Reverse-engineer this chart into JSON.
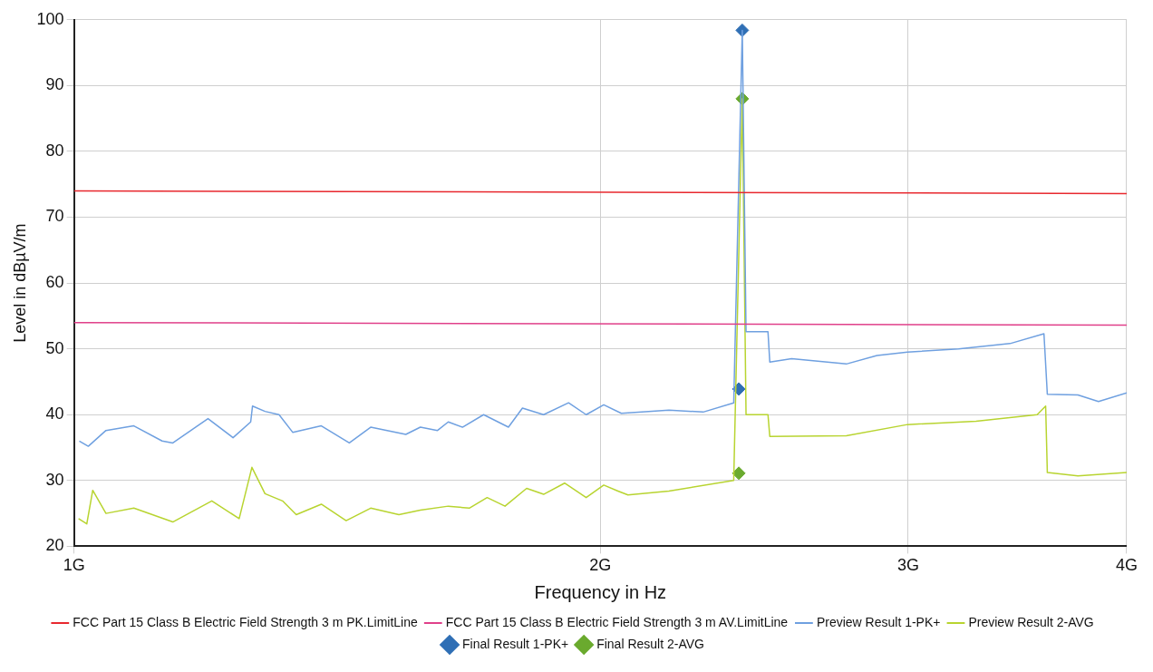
{
  "chart_data": {
    "type": "line",
    "xlabel": "Frequency in Hz",
    "ylabel": "Level in dBµV/m",
    "log": "x",
    "grid": true,
    "legend": "bottom",
    "xlim": [
      1,
      4
    ],
    "xticks": [
      {
        "value": 1,
        "label": "1G"
      },
      {
        "value": 2,
        "label": "2G"
      },
      {
        "value": 3,
        "label": "3G"
      },
      {
        "value": 4,
        "label": "4G"
      }
    ],
    "ylim": [
      20,
      100
    ],
    "yticks": [
      20,
      30,
      40,
      50,
      60,
      70,
      80,
      90,
      100
    ],
    "series": [
      {
        "name": "FCC Part 15 Class B Electric Field Strength 3 m PK.LimitLine",
        "color": "#e8282e",
        "x": [
          1,
          4
        ],
        "values": [
          74,
          73.6
        ]
      },
      {
        "name": "FCC Part 15 Class B Electric Field Strength 3 m AV.LimitLine",
        "color": "#e0408a",
        "x": [
          1,
          4
        ],
        "values": [
          54,
          53.6
        ]
      },
      {
        "name": "Preview Result 1-PK+",
        "color": "#6fa0e0",
        "x": [
          1.007,
          1.019,
          1.043,
          1.082,
          1.123,
          1.139,
          1.193,
          1.233,
          1.262,
          1.265,
          1.286,
          1.31,
          1.334,
          1.385,
          1.437,
          1.478,
          1.548,
          1.578,
          1.614,
          1.637,
          1.668,
          1.715,
          1.772,
          1.805,
          1.856,
          1.918,
          1.963,
          2.009,
          2.056,
          2.189,
          2.29,
          2.384,
          2.411,
          2.423,
          2.494,
          2.5,
          2.573,
          2.765,
          2.879,
          2.997,
          3.205,
          3.43,
          3.587,
          3.603,
          3.751,
          3.854,
          4.0
        ],
        "values": [
          36.0,
          35.2,
          37.6,
          38.3,
          36.0,
          35.7,
          39.4,
          36.5,
          38.9,
          41.3,
          40.5,
          40.0,
          37.3,
          38.3,
          35.7,
          38.1,
          37.0,
          38.1,
          37.6,
          38.9,
          38.1,
          40.0,
          38.1,
          41.0,
          40.0,
          41.8,
          40.0,
          41.5,
          40.2,
          40.7,
          40.4,
          41.8,
          98.4,
          52.6,
          52.6,
          48.0,
          48.5,
          47.7,
          49.0,
          49.5,
          50.0,
          50.8,
          52.3,
          43.1,
          43.0,
          42.0,
          43.3
        ]
      },
      {
        "name": "Preview Result 2-AVG",
        "color": "#b8d430",
        "x": [
          1.006,
          1.017,
          1.025,
          1.043,
          1.082,
          1.139,
          1.199,
          1.243,
          1.264,
          1.286,
          1.316,
          1.34,
          1.385,
          1.431,
          1.478,
          1.534,
          1.578,
          1.637,
          1.683,
          1.723,
          1.764,
          1.815,
          1.856,
          1.908,
          1.963,
          2.009,
          2.047,
          2.074,
          2.189,
          2.384,
          2.411,
          2.423,
          2.494,
          2.5,
          2.765,
          2.997,
          3.28,
          3.555,
          3.595,
          3.603,
          3.751,
          4.0
        ],
        "values": [
          24.2,
          23.4,
          28.5,
          25.0,
          25.8,
          23.7,
          26.9,
          24.2,
          32.0,
          28.0,
          26.9,
          24.8,
          26.4,
          23.9,
          25.8,
          24.8,
          25.5,
          26.1,
          25.8,
          27.4,
          26.1,
          28.8,
          27.9,
          29.6,
          27.4,
          29.3,
          28.4,
          27.8,
          28.4,
          30.0,
          88.0,
          40.0,
          40.0,
          36.7,
          36.8,
          38.5,
          39.0,
          40.0,
          41.3,
          31.2,
          30.7,
          31.2
        ]
      },
      {
        "name": "Final Result 1-PK+",
        "type": "scatter",
        "marker": "diamond",
        "color": "#2f6fb5",
        "x": [
          2.4,
          2.411
        ],
        "values": [
          43.9,
          98.4
        ]
      },
      {
        "name": "Final Result 2-AVG",
        "type": "scatter",
        "marker": "diamond",
        "color": "#6aaa2e",
        "x": [
          2.4,
          2.411
        ],
        "values": [
          31.1,
          88.0
        ]
      }
    ]
  }
}
